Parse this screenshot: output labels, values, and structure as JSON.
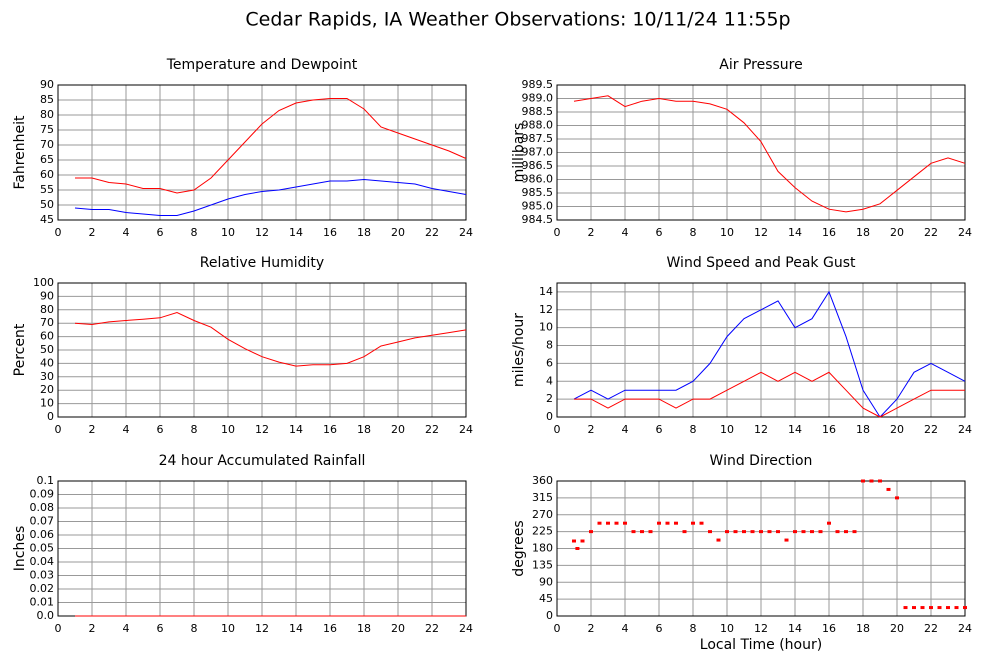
{
  "title": "Cedar Rapids, IA Weather Observations: 10/11/24 11:55p",
  "chart_data": [
    {
      "type": "line",
      "title": "Temperature and Dewpoint",
      "ylabel": "Fahrenheit",
      "x": [
        1,
        2,
        3,
        4,
        5,
        6,
        7,
        8,
        9,
        10,
        11,
        12,
        13,
        14,
        15,
        16,
        17,
        18,
        19,
        20,
        21,
        22,
        23,
        24
      ],
      "series": [
        {
          "color": "#ff0000",
          "values": [
            59,
            59,
            57.5,
            57,
            55.5,
            55.5,
            54,
            55,
            59,
            65,
            71,
            77,
            81.5,
            84,
            85,
            85.5,
            85.5,
            82,
            76,
            74,
            72,
            70,
            68,
            65.5
          ]
        },
        {
          "color": "#0000ff",
          "values": [
            49,
            48.5,
            48.5,
            47.5,
            47,
            46.5,
            46.5,
            48,
            50,
            52,
            53.5,
            54.5,
            55,
            56,
            57,
            58,
            58,
            58.5,
            58,
            57.5,
            57,
            55.5,
            54.5,
            53.5
          ]
        }
      ],
      "xlim": [
        0,
        24
      ],
      "xticks": [
        0,
        2,
        4,
        6,
        8,
        10,
        12,
        14,
        16,
        18,
        20,
        22,
        24
      ],
      "ylim": [
        45,
        90
      ],
      "yticks": [
        45,
        50,
        55,
        60,
        65,
        70,
        75,
        80,
        85,
        90
      ],
      "grid": true
    },
    {
      "type": "line",
      "title": "Air Pressure",
      "ylabel": "millibars",
      "x": [
        1,
        2,
        3,
        4,
        5,
        6,
        7,
        8,
        9,
        10,
        11,
        12,
        13,
        14,
        15,
        16,
        17,
        18,
        19,
        20,
        21,
        22,
        23,
        24
      ],
      "series": [
        {
          "color": "#ff0000",
          "values": [
            988.9,
            989.0,
            989.1,
            988.7,
            988.9,
            989.0,
            988.9,
            988.9,
            988.8,
            988.6,
            988.1,
            987.4,
            986.3,
            985.7,
            985.2,
            984.9,
            984.8,
            984.9,
            985.1,
            985.6,
            986.1,
            986.6,
            986.8,
            986.6
          ]
        }
      ],
      "xlim": [
        0,
        24
      ],
      "xticks": [
        0,
        2,
        4,
        6,
        8,
        10,
        12,
        14,
        16,
        18,
        20,
        22,
        24
      ],
      "ylim": [
        984.5,
        989.5
      ],
      "yticks": [
        984.5,
        {
          "value": 985,
          "label": "985.0"
        },
        985.5,
        {
          "value": 986,
          "label": "986.0"
        },
        986.5,
        {
          "value": 987,
          "label": "987.0"
        },
        987.5,
        {
          "value": 988,
          "label": "988.0"
        },
        988.5,
        {
          "value": 989,
          "label": "989.0"
        },
        989.5
      ],
      "grid": true
    },
    {
      "type": "line",
      "title": "Relative Humidity",
      "ylabel": "Percent",
      "x": [
        1,
        2,
        3,
        4,
        5,
        6,
        7,
        8,
        9,
        10,
        11,
        12,
        13,
        14,
        15,
        16,
        17,
        18,
        19,
        20,
        21,
        22,
        23,
        24
      ],
      "series": [
        {
          "color": "#ff0000",
          "values": [
            70,
            69,
            71,
            72,
            73,
            74,
            78,
            72,
            67,
            58,
            51,
            45,
            41,
            38,
            39,
            39,
            40,
            45,
            53,
            56,
            59,
            61,
            63,
            65
          ]
        }
      ],
      "xlim": [
        0,
        24
      ],
      "xticks": [
        0,
        2,
        4,
        6,
        8,
        10,
        12,
        14,
        16,
        18,
        20,
        22,
        24
      ],
      "ylim": [
        0,
        100
      ],
      "yticks": [
        0,
        10,
        20,
        30,
        40,
        50,
        60,
        70,
        80,
        90,
        100
      ],
      "grid": true
    },
    {
      "type": "line",
      "title": "Wind Speed and Peak Gust",
      "ylabel": "miles/hour",
      "x": [
        1,
        2,
        3,
        4,
        5,
        6,
        7,
        8,
        9,
        10,
        11,
        12,
        13,
        14,
        15,
        16,
        17,
        18,
        19,
        20,
        21,
        22,
        23,
        24
      ],
      "series": [
        {
          "color": "#0000ff",
          "values": [
            2,
            3,
            2,
            3,
            3,
            3,
            3,
            4,
            6,
            9,
            11,
            12,
            13,
            10,
            11,
            14,
            9,
            3,
            0,
            2,
            5,
            6,
            5,
            4
          ]
        },
        {
          "color": "#ff0000",
          "values": [
            2,
            2,
            1,
            2,
            2,
            2,
            1,
            2,
            2,
            3,
            4,
            5,
            4,
            5,
            4,
            5,
            3,
            1,
            0,
            1,
            2,
            3,
            3,
            3
          ]
        }
      ],
      "xlim": [
        0,
        24
      ],
      "xticks": [
        0,
        2,
        4,
        6,
        8,
        10,
        12,
        14,
        16,
        18,
        20,
        22,
        24
      ],
      "ylim": [
        0,
        15
      ],
      "yticks": [
        0,
        2,
        4,
        6,
        8,
        10,
        12,
        14
      ],
      "grid": true
    },
    {
      "type": "line",
      "title": "24 hour Accumulated Rainfall",
      "ylabel": "Inches",
      "x": [
        1,
        24
      ],
      "series": [
        {
          "color": "#ff0000",
          "values": [
            0,
            0
          ]
        }
      ],
      "xlim": [
        0,
        24
      ],
      "xticks": [
        0,
        2,
        4,
        6,
        8,
        10,
        12,
        14,
        16,
        18,
        20,
        22,
        24
      ],
      "ylim": [
        0,
        0.1
      ],
      "yticks": [
        {
          "value": 0,
          "label": "0.0"
        },
        0.01,
        0.02,
        0.03,
        0.04,
        0.05,
        0.06,
        0.07,
        0.08,
        0.09,
        0.1
      ],
      "grid": true
    },
    {
      "type": "scatter",
      "title": "Wind Direction",
      "ylabel": "degrees",
      "xlabel": "Local Time (hour)",
      "x": [
        1,
        1.2,
        1.5,
        2,
        2.5,
        3,
        3.5,
        4,
        4.5,
        5,
        5.5,
        6,
        6.5,
        7,
        7.5,
        8,
        8.5,
        9,
        9.5,
        10,
        10.5,
        11,
        11.5,
        12,
        12.5,
        13,
        13.5,
        14,
        14.5,
        15,
        15.5,
        16,
        16.5,
        17,
        17.5,
        18,
        18.5,
        19,
        19.5,
        20,
        20.5,
        21,
        21.5,
        22,
        22.5,
        23,
        23.5,
        24
      ],
      "series": [
        {
          "color": "#ff0000",
          "values": [
            200,
            180,
            200,
            225,
            247.5,
            247.5,
            247.5,
            247.5,
            225,
            225,
            225,
            247.5,
            247.5,
            247.5,
            225,
            247.5,
            247.5,
            225,
            202.5,
            225,
            225,
            225,
            225,
            225,
            225,
            225,
            202.5,
            225,
            225,
            225,
            225,
            247.5,
            225,
            225,
            225,
            360,
            360,
            360,
            337.5,
            315,
            22.5,
            22.5,
            22.5,
            22.5,
            22.5,
            22.5,
            22.5,
            22.5
          ]
        }
      ],
      "xlim": [
        0,
        24
      ],
      "xticks": [
        0,
        2,
        4,
        6,
        8,
        10,
        12,
        14,
        16,
        18,
        20,
        22,
        24
      ],
      "ylim": [
        0,
        360
      ],
      "yticks": [
        0,
        45,
        90,
        135,
        180,
        225,
        270,
        315,
        360
      ],
      "grid": true
    }
  ]
}
